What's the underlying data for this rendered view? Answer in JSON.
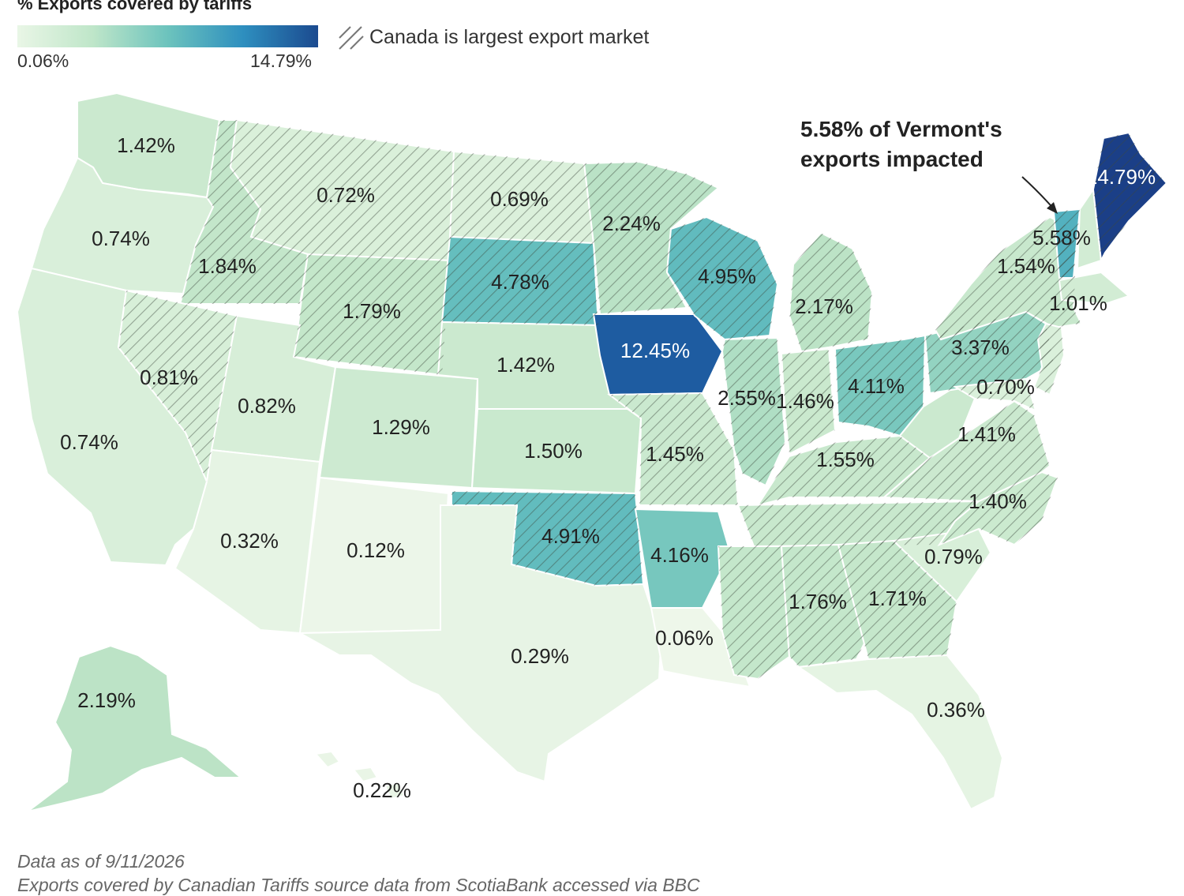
{
  "legend": {
    "title": "% Exports covered by tariffs",
    "min_label": "0.06%",
    "max_label": "14.79%",
    "hatch_label": "Canada is largest export market",
    "color_scale": [
      "#eef7ea",
      "#d3edd5",
      "#b3e0c4",
      "#6cc3bd",
      "#3a9fc1",
      "#1f63a8",
      "#1b3f87"
    ]
  },
  "annotation": {
    "line1": "5.58% of Vermont's",
    "line2": "exports impacted"
  },
  "footnote": {
    "line1": "Data as of 9/11/2026",
    "line2": "Exports covered by Canadian Tariffs source data from ScotiaBank accessed via BBC"
  },
  "chart_data": {
    "type": "choropleth",
    "metric": "% Exports covered by tariffs",
    "states": [
      {
        "id": "WA",
        "value": 1.42,
        "label": "1.42%",
        "canada_largest": false
      },
      {
        "id": "OR",
        "value": 0.74,
        "label": "0.74%",
        "canada_largest": false
      },
      {
        "id": "CA",
        "value": 0.74,
        "label": "0.74%",
        "canada_largest": false
      },
      {
        "id": "ID",
        "value": 1.84,
        "label": "1.84%",
        "canada_largest": true
      },
      {
        "id": "NV",
        "value": 0.81,
        "label": "0.81%",
        "canada_largest": true
      },
      {
        "id": "MT",
        "value": 0.72,
        "label": "0.72%",
        "canada_largest": true
      },
      {
        "id": "WY",
        "value": 1.79,
        "label": "1.79%",
        "canada_largest": true
      },
      {
        "id": "UT",
        "value": 0.82,
        "label": "0.82%",
        "canada_largest": false
      },
      {
        "id": "AZ",
        "value": 0.32,
        "label": "0.32%",
        "canada_largest": false
      },
      {
        "id": "CO",
        "value": 1.29,
        "label": "1.29%",
        "canada_largest": false
      },
      {
        "id": "NM",
        "value": 0.12,
        "label": "0.12%",
        "canada_largest": false
      },
      {
        "id": "ND",
        "value": 0.69,
        "label": "0.69%",
        "canada_largest": true
      },
      {
        "id": "SD",
        "value": 4.78,
        "label": "4.78%",
        "canada_largest": true
      },
      {
        "id": "NE",
        "value": 1.42,
        "label": "1.42%",
        "canada_largest": false
      },
      {
        "id": "KS",
        "value": 1.5,
        "label": "1.50%",
        "canada_largest": false
      },
      {
        "id": "OK",
        "value": 4.91,
        "label": "4.91%",
        "canada_largest": true
      },
      {
        "id": "TX",
        "value": 0.29,
        "label": "0.29%",
        "canada_largest": false
      },
      {
        "id": "MN",
        "value": 2.24,
        "label": "2.24%",
        "canada_largest": true
      },
      {
        "id": "IA",
        "value": 12.45,
        "label": "12.45%",
        "canada_largest": false
      },
      {
        "id": "MO",
        "value": 1.45,
        "label": "1.45%",
        "canada_largest": true
      },
      {
        "id": "AR",
        "value": 4.16,
        "label": "4.16%",
        "canada_largest": false
      },
      {
        "id": "LA",
        "value": 0.06,
        "label": "0.06%",
        "canada_largest": false
      },
      {
        "id": "WI",
        "value": 4.95,
        "label": "4.95%",
        "canada_largest": true
      },
      {
        "id": "IL",
        "value": 2.55,
        "label": "2.55%",
        "canada_largest": true
      },
      {
        "id": "MI",
        "value": 2.17,
        "label": "2.17%",
        "canada_largest": true
      },
      {
        "id": "IN",
        "value": 1.46,
        "label": "1.46%",
        "canada_largest": true
      },
      {
        "id": "OH",
        "value": 4.11,
        "label": "4.11%",
        "canada_largest": true
      },
      {
        "id": "KY",
        "value": 1.55,
        "label": "1.55%",
        "canada_largest": true
      },
      {
        "id": "TN",
        "value": 1.55,
        "label": "",
        "canada_largest": true
      },
      {
        "id": "MS",
        "value": 1.76,
        "label": "1.76%",
        "canada_largest": true
      },
      {
        "id": "AL",
        "value": 1.76,
        "label": "",
        "canada_largest": true
      },
      {
        "id": "GA",
        "value": 1.71,
        "label": "1.71%",
        "canada_largest": true
      },
      {
        "id": "FL",
        "value": 0.36,
        "label": "0.36%",
        "canada_largest": false
      },
      {
        "id": "SC",
        "value": 0.79,
        "label": "0.79%",
        "canada_largest": false
      },
      {
        "id": "NC",
        "value": 1.4,
        "label": "1.40%",
        "canada_largest": true
      },
      {
        "id": "VA",
        "value": 1.41,
        "label": "1.41%",
        "canada_largest": true
      },
      {
        "id": "WV",
        "value": 1.41,
        "label": "",
        "canada_largest": false
      },
      {
        "id": "PA",
        "value": 3.37,
        "label": "3.37%",
        "canada_largest": true
      },
      {
        "id": "NY",
        "value": 1.54,
        "label": "1.54%",
        "canada_largest": true
      },
      {
        "id": "NJ",
        "value": 0.7,
        "label": "0.70%",
        "canada_largest": true
      },
      {
        "id": "MD",
        "value": 0.7,
        "label": "",
        "canada_largest": true
      },
      {
        "id": "VT",
        "value": 5.58,
        "label": "5.58%",
        "canada_largest": true
      },
      {
        "id": "NH",
        "value": 1.01,
        "label": "",
        "canada_largest": false
      },
      {
        "id": "MA",
        "value": 1.01,
        "label": "1.01%",
        "canada_largest": false
      },
      {
        "id": "ME",
        "value": 14.79,
        "label": "14.79%",
        "canada_largest": true
      },
      {
        "id": "AK",
        "value": 2.19,
        "label": "2.19%",
        "canada_largest": false
      },
      {
        "id": "HI",
        "value": 0.22,
        "label": "0.22%",
        "canada_largest": false
      }
    ]
  }
}
